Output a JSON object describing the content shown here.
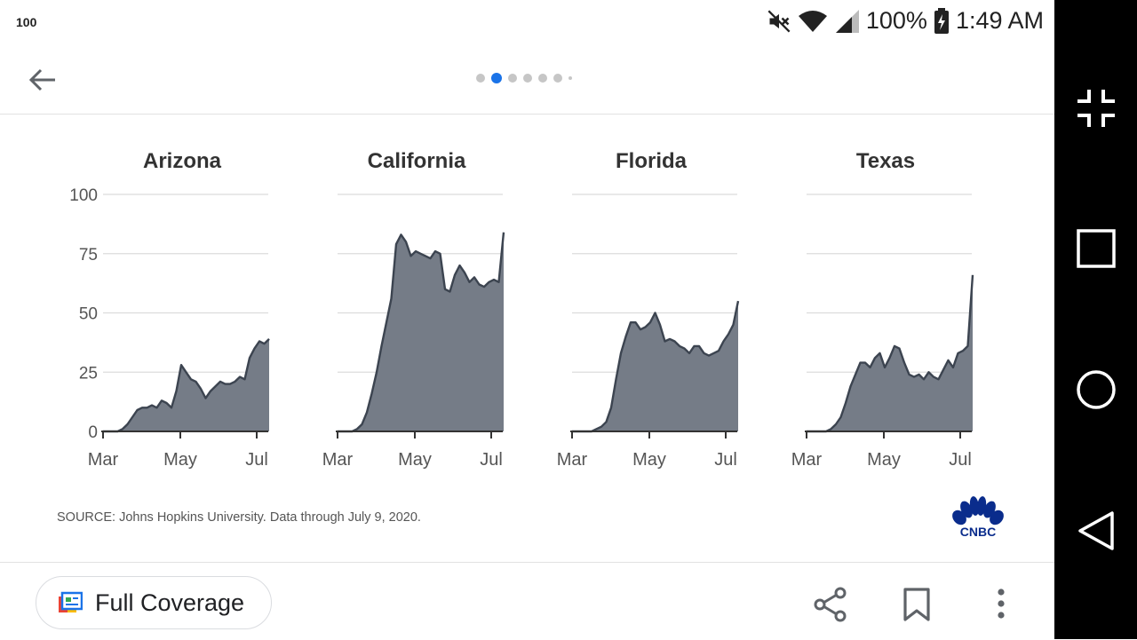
{
  "status_bar": {
    "left_text": "100",
    "battery": "100%",
    "time": "1:49 AM",
    "icons": [
      "mute-icon",
      "wifi-icon",
      "signal-icon",
      "battery-charging-icon"
    ]
  },
  "pager": {
    "count": 7,
    "active_index": 1
  },
  "chart_data": {
    "type": "area",
    "yticks": [
      0,
      25,
      50,
      75,
      100
    ],
    "ylim": [
      0,
      100
    ],
    "xtick_labels": [
      "Mar",
      "May",
      "Jul"
    ],
    "color": "#757c87",
    "panels": [
      {
        "title": "Arizona",
        "values": [
          0,
          0,
          0,
          0,
          1,
          3,
          6,
          9,
          10,
          10,
          11,
          10,
          13,
          12,
          10,
          17,
          28,
          25,
          22,
          21,
          18,
          14,
          17,
          19,
          21,
          20,
          20,
          21,
          23,
          22,
          31,
          35,
          38,
          37,
          39
        ]
      },
      {
        "title": "California",
        "values": [
          0,
          0,
          0,
          0,
          1,
          3,
          8,
          16,
          25,
          36,
          46,
          56,
          79,
          83,
          80,
          74,
          76,
          75,
          74,
          73,
          76,
          75,
          60,
          59,
          66,
          70,
          67,
          63,
          65,
          62,
          61,
          63,
          64,
          63,
          84
        ]
      },
      {
        "title": "Florida",
        "values": [
          0,
          0,
          0,
          0,
          0,
          1,
          2,
          4,
          10,
          22,
          33,
          40,
          46,
          46,
          43,
          44,
          46,
          50,
          45,
          38,
          39,
          38,
          36,
          35,
          33,
          36,
          36,
          33,
          32,
          33,
          34,
          38,
          41,
          45,
          55
        ]
      },
      {
        "title": "Texas",
        "values": [
          0,
          0,
          0,
          0,
          0,
          1,
          3,
          6,
          12,
          19,
          24,
          29,
          29,
          27,
          31,
          33,
          27,
          31,
          36,
          35,
          29,
          24,
          23,
          24,
          22,
          25,
          23,
          22,
          26,
          30,
          27,
          33,
          34,
          36,
          66
        ]
      }
    ]
  },
  "source": "SOURCE: Johns Hopkins University. Data through July 9, 2020.",
  "logo": {
    "text": "CNBC"
  },
  "bottom_bar": {
    "full_coverage_label": "Full Coverage"
  },
  "colors": {
    "accent": "#1a73e8",
    "area_fill": "#757c87",
    "area_line": "#3c4450",
    "logo_blue": "#0a2c8c"
  }
}
